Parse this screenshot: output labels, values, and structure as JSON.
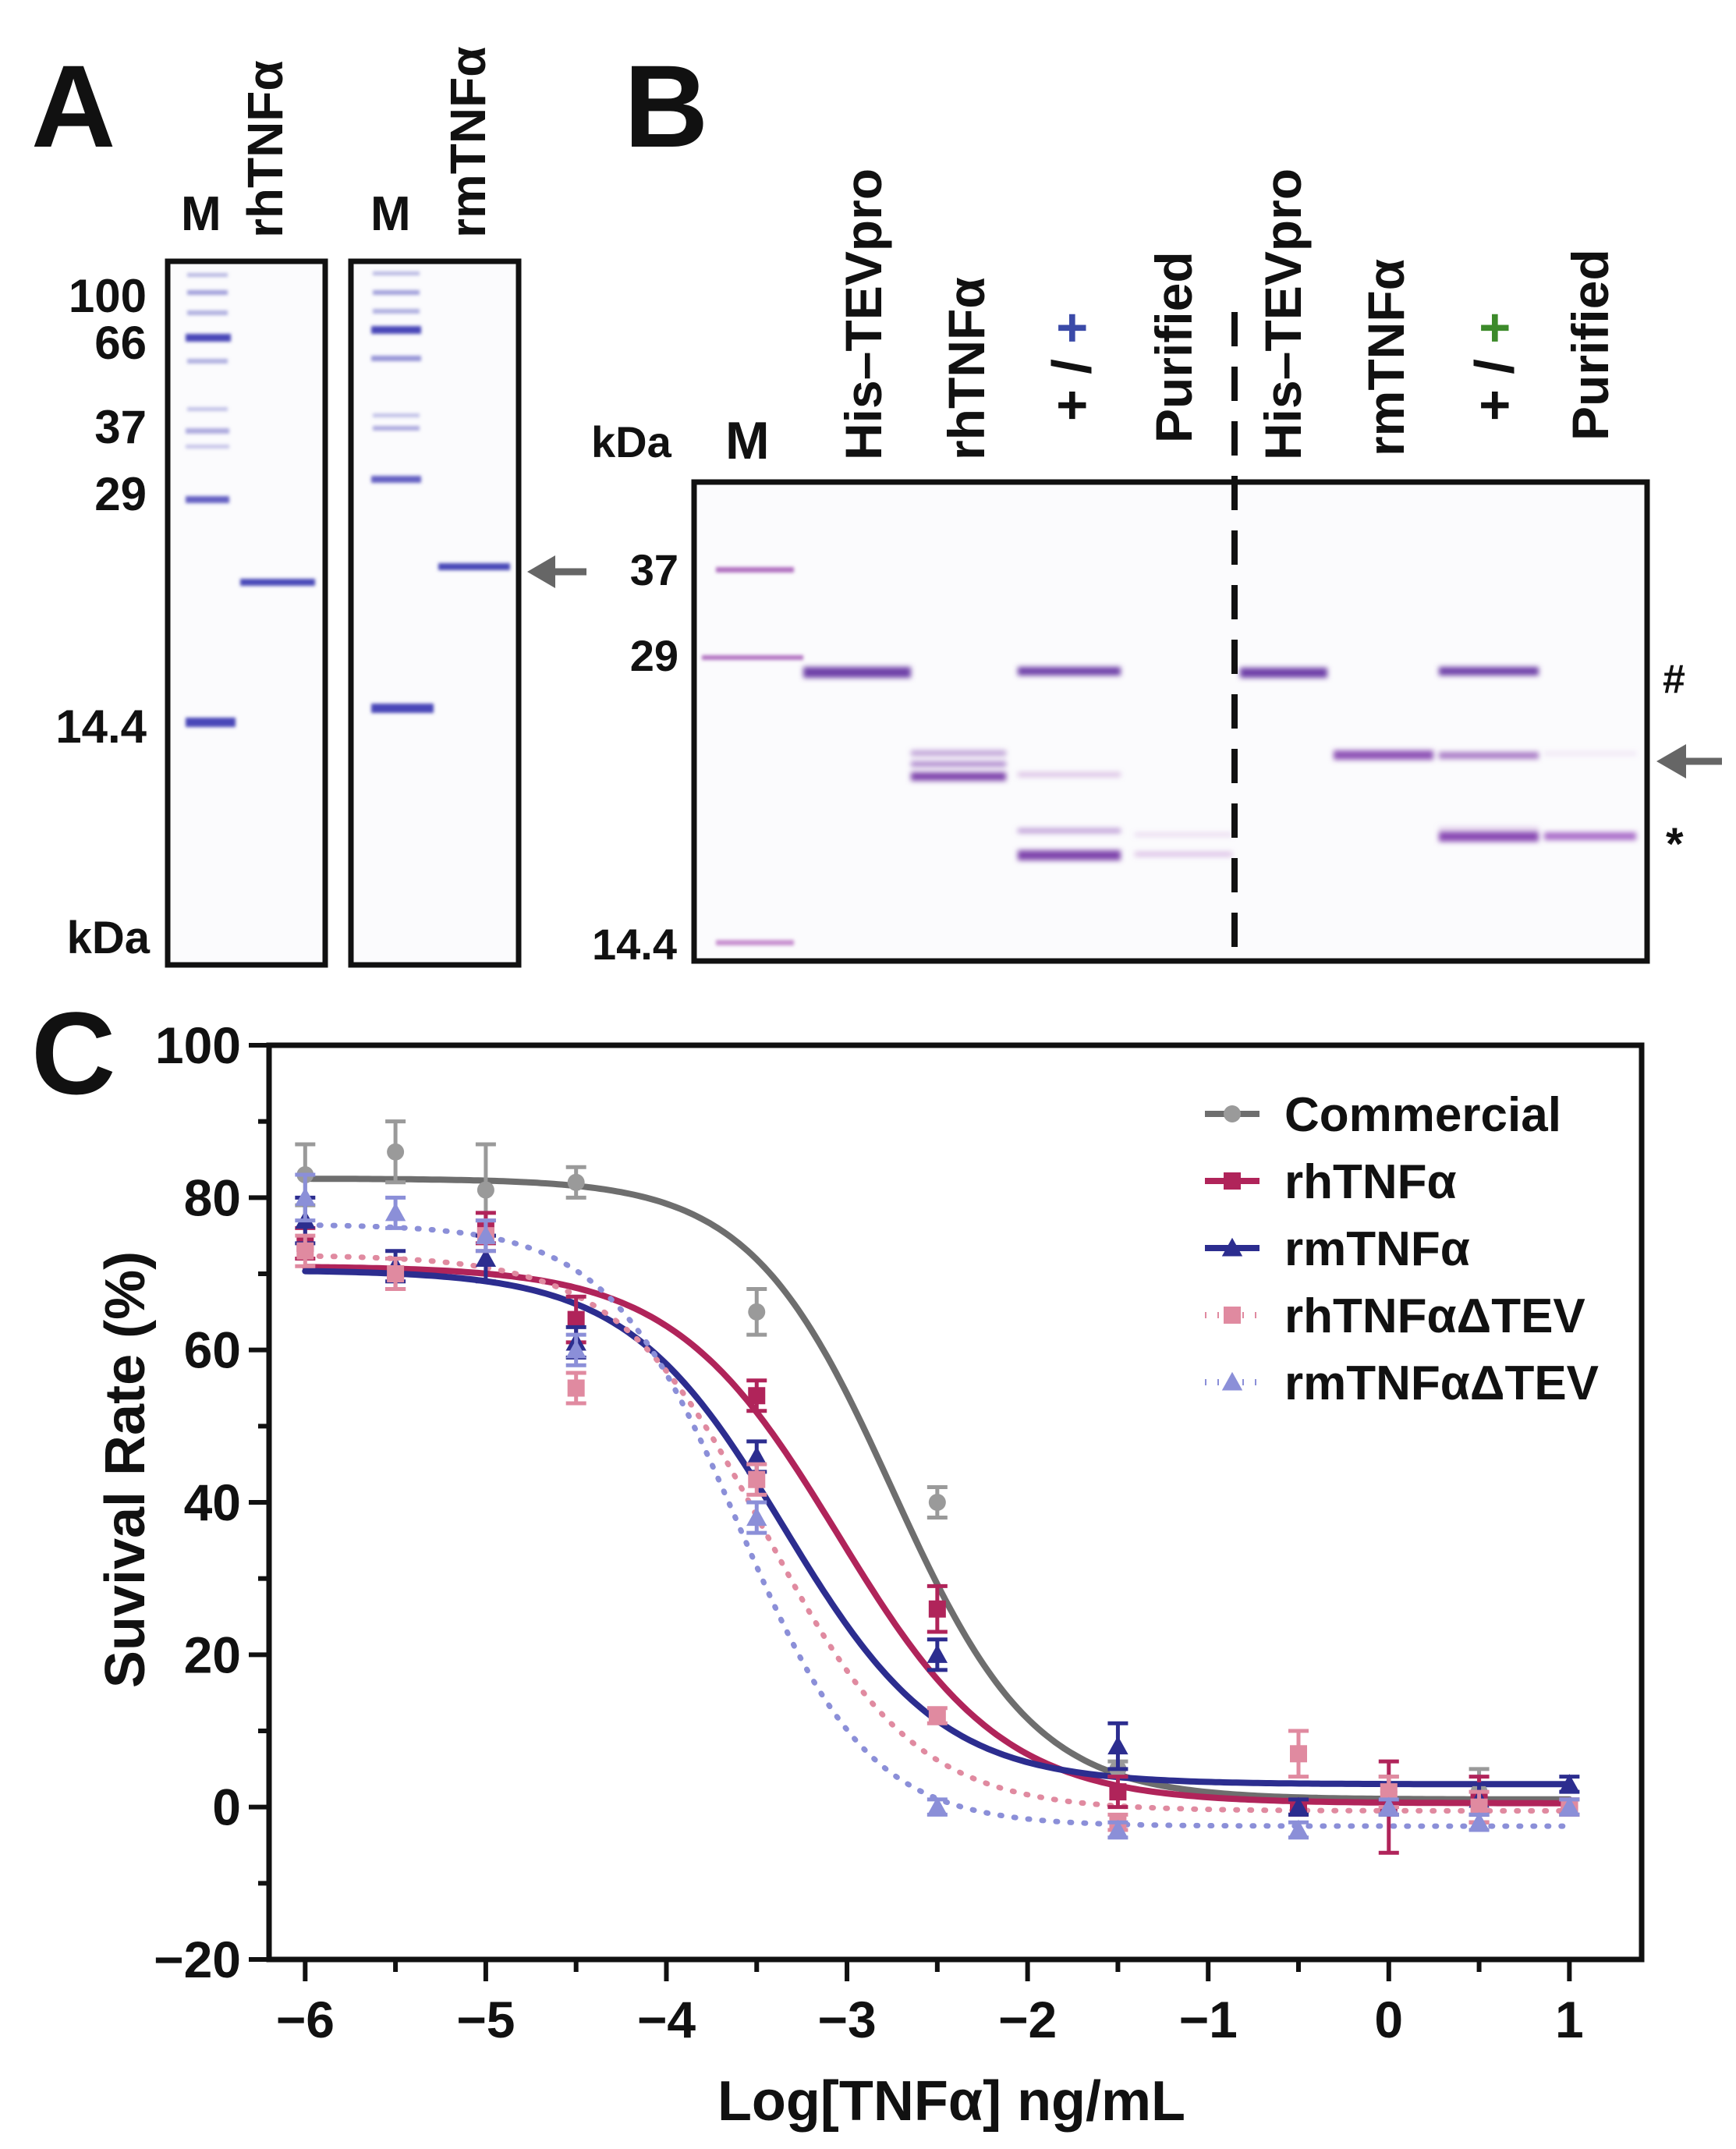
{
  "panelA": {
    "letter": "A",
    "gel1": {
      "lane_labels": [
        "M",
        "rhTNFα"
      ],
      "lane_colors": [
        "#111111",
        "#3b4aa8"
      ]
    },
    "gel2": {
      "lane_labels": [
        "M",
        "rmTNFα"
      ],
      "lane_colors": [
        "#111111",
        "#3c8a2a"
      ]
    },
    "marker_labels": [
      "100",
      "66",
      "37",
      "29",
      "14.4"
    ],
    "unit": "kDa"
  },
  "panelB": {
    "letter": "B",
    "unit": "kDa",
    "lane_labels": [
      "M",
      "His–TEVpro",
      "rhTNFα",
      "+ / +",
      "Purified",
      "His–TEVpro",
      "rmTNFα",
      "+ / +",
      "Purified"
    ],
    "plus_left": "+ / ",
    "plus_right": "+",
    "marker_labels": [
      "37",
      "29",
      "14.4"
    ],
    "side_marks": [
      "#",
      "*"
    ],
    "colors": {
      "rh": "#3b4aa8",
      "rm": "#3c8a2a"
    }
  },
  "panelC": {
    "letter": "C",
    "chart_data": {
      "type": "line",
      "xlabel": "Log[TNFα] ng/mL",
      "ylabel": "Suvival Rate (%)",
      "xlim": [
        -6.2,
        1.4
      ],
      "ylim": [
        -20,
        100
      ],
      "xticks": [
        -6,
        -5,
        -4,
        -3,
        -2,
        -1,
        0,
        1
      ],
      "xtick_labels": [
        "−6",
        "−5",
        "−4",
        "−3",
        "−2",
        "−1",
        "0",
        "1"
      ],
      "yticks": [
        -20,
        0,
        20,
        40,
        60,
        80,
        100
      ],
      "ytick_labels": [
        "−20",
        "0",
        "20",
        "40",
        "60",
        "80",
        "100"
      ],
      "legend_position": "top-right",
      "series": [
        {
          "name": "Commercial",
          "marker": "circle",
          "style": "solid",
          "color": "#6e6e6e",
          "point_color": "#9a9a9a",
          "x": [
            -6,
            -5.5,
            -5,
            -4.5,
            -3.5,
            -2.5,
            -1.5,
            -0.5,
            0,
            0.5,
            1
          ],
          "y": [
            83,
            86,
            81,
            82,
            65,
            40,
            5,
            0,
            2,
            2,
            0
          ],
          "err": [
            4,
            4,
            6,
            2,
            3,
            2,
            1,
            1,
            2,
            3,
            1
          ],
          "fit": {
            "top": 82.5,
            "bottom": 1,
            "logec50": -2.75,
            "hill": 1.1
          }
        },
        {
          "name": "rhTNFα",
          "marker": "square",
          "style": "solid",
          "color": "#b0245a",
          "point_color": "#b0245a",
          "x": [
            -6,
            -5.5,
            -5,
            -4.5,
            -3.5,
            -2.5,
            -1.5,
            -0.5,
            0,
            0.5,
            1
          ],
          "y": [
            74,
            70,
            76,
            64,
            54,
            26,
            2,
            0,
            0,
            1,
            0
          ],
          "err": [
            2,
            2,
            2,
            3,
            2,
            3,
            2,
            1,
            6,
            3,
            1
          ],
          "fit": {
            "top": 71,
            "bottom": 0.5,
            "logec50": -3.05,
            "hill": 0.95
          }
        },
        {
          "name": "rmTNFα",
          "marker": "triangle",
          "style": "solid",
          "color": "#2c2d8f",
          "point_color": "#2c2d8f",
          "x": [
            -6,
            -5.5,
            -5,
            -4.5,
            -3.5,
            -2.5,
            -1.5,
            -0.5,
            0,
            0.5,
            1
          ],
          "y": [
            77,
            71,
            72,
            61,
            46,
            20,
            8,
            0,
            0,
            1,
            3
          ],
          "err": [
            3,
            2,
            3,
            2,
            2,
            2,
            3,
            1,
            1,
            2,
            1
          ],
          "fit": {
            "top": 70.5,
            "bottom": 3,
            "logec50": -3.35,
            "hill": 1.0
          }
        },
        {
          "name": "rhTNFαΔTEV",
          "marker": "square",
          "style": "dotted",
          "color": "#e08aa0",
          "point_color": "#e08aa0",
          "x": [
            -6,
            -5.5,
            -5,
            -4.5,
            -3.5,
            -2.5,
            -1.5,
            -0.5,
            0,
            0.5,
            1
          ],
          "y": [
            73,
            70,
            75,
            55,
            43,
            12,
            -2,
            7,
            2,
            0,
            0
          ],
          "err": [
            2,
            2,
            2,
            2,
            2,
            1,
            1,
            3,
            2,
            2,
            1
          ],
          "fit": {
            "top": 72.5,
            "bottom": -0.5,
            "logec50": -3.45,
            "hill": 1.05
          }
        },
        {
          "name": "rmTNFαΔTEV",
          "marker": "triangle",
          "style": "dotted",
          "color": "#8b8fd8",
          "point_color": "#8b8fd8",
          "x": [
            -6,
            -5.5,
            -5,
            -4.5,
            -3.5,
            -2.5,
            -1.5,
            -0.5,
            0,
            0.5,
            1
          ],
          "y": [
            80,
            78,
            75,
            60,
            38,
            0,
            -3,
            -3,
            0,
            -2,
            0
          ],
          "err": [
            3,
            2,
            2,
            2,
            2,
            1,
            1,
            1,
            1,
            1,
            1
          ],
          "fit": {
            "top": 76.5,
            "bottom": -2.5,
            "logec50": -3.6,
            "hill": 1.2
          }
        }
      ]
    }
  }
}
